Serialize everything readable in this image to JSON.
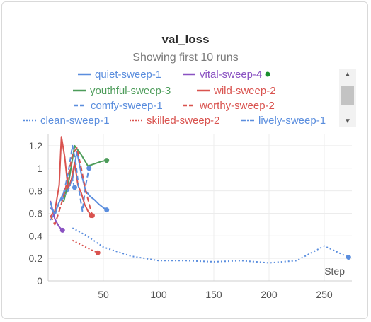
{
  "panel": {
    "title": "val_loss",
    "subtitle": "Showing first 10 runs"
  },
  "chart_data": {
    "type": "line",
    "title": "val_loss",
    "subtitle": "Showing first 10 runs",
    "xlabel": "Step",
    "ylabel": "",
    "xlim": [
      0,
      275
    ],
    "ylim": [
      0,
      1.3
    ],
    "xticks": [
      50,
      100,
      150,
      200,
      250
    ],
    "yticks": [
      0,
      0.2,
      0.4,
      0.6,
      0.8,
      1,
      1.2
    ],
    "xtick_labels": [
      "50",
      "100",
      "150",
      "200",
      "250"
    ],
    "ytick_labels": [
      "0",
      "0.2",
      "0.4",
      "0.6",
      "0.8",
      "1",
      "1.2"
    ],
    "grid": true,
    "legend_position": "top",
    "series": [
      {
        "name": "quiet-sweep-1",
        "color": "#5b8ede",
        "dash": "solid",
        "x": [
          2,
          6,
          10,
          14,
          18,
          22,
          26,
          30,
          34,
          38,
          42,
          46,
          50,
          53
        ],
        "y": [
          0.54,
          0.6,
          0.7,
          0.78,
          0.82,
          0.9,
          1.15,
          0.95,
          0.8,
          0.75,
          0.72,
          0.68,
          0.65,
          0.63
        ]
      },
      {
        "name": "vital-sweep-4",
        "color": "#8a52c2",
        "dash": "solid",
        "x": [
          2,
          6,
          10,
          13
        ],
        "y": [
          0.71,
          0.55,
          0.48,
          0.45
        ]
      },
      {
        "name": "youthful-sweep-3",
        "color": "#4d9c5a",
        "dash": "solid",
        "x": [
          14,
          19,
          24,
          30,
          36,
          42,
          48,
          53
        ],
        "y": [
          0.7,
          0.9,
          1.2,
          1.12,
          1.02,
          1.04,
          1.06,
          1.07
        ]
      },
      {
        "name": "wild-sweep-2",
        "color": "#d9534f",
        "dash": "solid",
        "x": [
          2,
          6,
          10,
          12,
          15,
          18,
          21,
          24,
          27,
          30,
          33,
          36,
          39
        ],
        "y": [
          0.57,
          0.62,
          0.85,
          1.28,
          1.1,
          0.82,
          0.9,
          1.05,
          0.85,
          0.78,
          0.68,
          0.62,
          0.58
        ]
      },
      {
        "name": "comfy-sweep-1",
        "color": "#5b8ede",
        "dash": "dash",
        "x": [
          2,
          6,
          10,
          14,
          18,
          22,
          25,
          28,
          31,
          34,
          37
        ],
        "y": [
          0.7,
          0.58,
          0.7,
          0.78,
          0.95,
          1.2,
          1.05,
          0.8,
          0.62,
          0.85,
          1.0
        ]
      },
      {
        "name": "worthy-sweep-2",
        "color": "#d9534f",
        "dash": "dash",
        "x": [
          2,
          6,
          10,
          14,
          18,
          22,
          26,
          30,
          34,
          38,
          40
        ],
        "y": [
          0.58,
          0.5,
          0.62,
          0.75,
          0.92,
          1.12,
          1.18,
          1.0,
          0.8,
          0.65,
          0.58
        ]
      },
      {
        "name": "clean-sweep-1",
        "color": "#5b8ede",
        "dash": "dot",
        "x": [
          22,
          35,
          50,
          75,
          100,
          125,
          150,
          175,
          200,
          225,
          250,
          272
        ],
        "y": [
          0.47,
          0.4,
          0.3,
          0.22,
          0.18,
          0.18,
          0.17,
          0.18,
          0.16,
          0.18,
          0.31,
          0.21
        ]
      },
      {
        "name": "skilled-sweep-2",
        "color": "#d9534f",
        "dash": "dot",
        "x": [
          22,
          30,
          38,
          45
        ],
        "y": [
          0.36,
          0.32,
          0.28,
          0.25
        ]
      },
      {
        "name": "lively-sweep-1",
        "color": "#5b8ede",
        "dash": "dashdot",
        "x": [
          2,
          6,
          10,
          14,
          18,
          22,
          24
        ],
        "y": [
          0.65,
          0.6,
          0.7,
          0.74,
          0.8,
          0.9,
          0.83
        ]
      }
    ]
  }
}
